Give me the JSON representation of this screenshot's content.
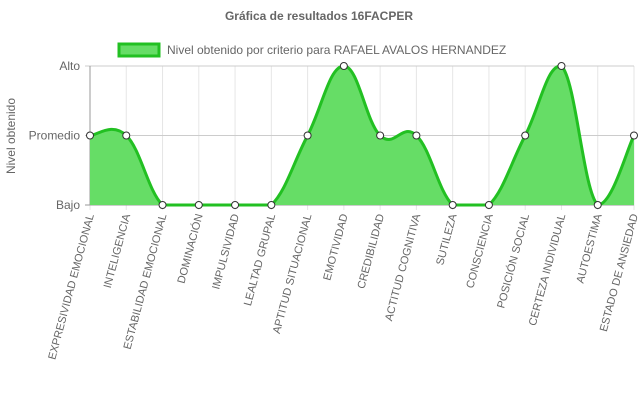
{
  "chart_data": {
    "type": "area",
    "title": "Gráfica de resultados 16FACPER",
    "ylabel": "Nivel obtenido",
    "xlabel": "",
    "y_levels": [
      "Bajo",
      "Promedio",
      "Alto"
    ],
    "ylim": [
      0,
      2
    ],
    "grid": true,
    "legend_position": "top",
    "categories": [
      "EXPRESIVIDAD EMOCIONAL",
      "INTELIGENCIA",
      "ESTABILIDAD EMOCIONAL",
      "DOMINACIÓN",
      "IMPULSIVIDAD",
      "LEALTAD GRUPAL",
      "APTITUD SITUACIONAL",
      "EMOTIVIDAD",
      "CREDIBILIDAD",
      "ACTITUD COGNITIVA",
      "SUTILEZA",
      "CONSCIENCIA",
      "POSICIÓN SOCIAL",
      "CERTEZA INDIVIDUAL",
      "AUTOESTIMA",
      "ESTADO DE ANSIEDAD"
    ],
    "series": [
      {
        "name": "Nivel obtenido por criterio para RAFAEL AVALOS HERNANDEZ",
        "values": [
          1,
          1,
          0,
          0,
          0,
          0,
          1,
          2,
          1,
          1,
          0,
          0,
          1,
          2,
          0,
          1
        ],
        "line_color": "#22c022",
        "fill_color": "#66dd66"
      }
    ]
  }
}
